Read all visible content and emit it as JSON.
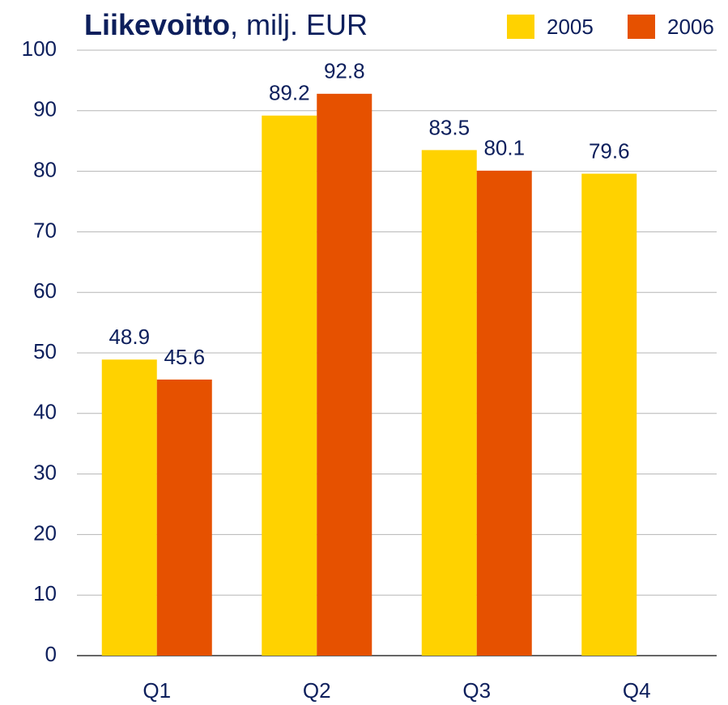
{
  "chart_data": {
    "type": "bar",
    "title": {
      "bold": "Liikevoitto",
      "rest": ", milj. EUR"
    },
    "categories": [
      "Q1",
      "Q2",
      "Q3",
      "Q4"
    ],
    "series": [
      {
        "name": "2005",
        "color": "#ffd200",
        "values": [
          48.9,
          89.2,
          83.5,
          79.6
        ]
      },
      {
        "name": "2006",
        "color": "#e65100",
        "values": [
          45.6,
          92.8,
          80.1,
          null
        ]
      }
    ],
    "ylim": [
      0,
      100
    ],
    "yticks": [
      0,
      10,
      20,
      30,
      40,
      50,
      60,
      70,
      80,
      90,
      100
    ],
    "grid": true,
    "legend": "top-right"
  }
}
